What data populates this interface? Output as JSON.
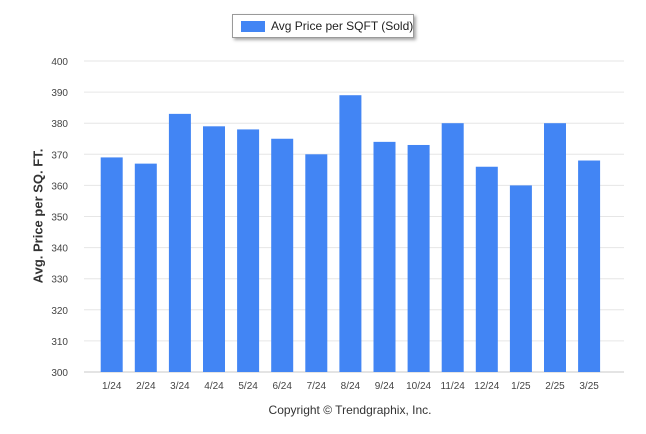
{
  "chart_data": {
    "type": "bar",
    "categories": [
      "1/24",
      "2/24",
      "3/24",
      "4/24",
      "5/24",
      "6/24",
      "7/24",
      "8/24",
      "9/24",
      "10/24",
      "11/24",
      "12/24",
      "1/25",
      "2/25",
      "3/25"
    ],
    "series": [
      {
        "name": "Avg Price per SQFT (Sold)",
        "values": [
          369,
          367,
          383,
          379,
          378,
          375,
          370,
          389,
          374,
          373,
          380,
          366,
          360,
          380,
          368
        ]
      }
    ],
    "ylabel": "Avg. Price per SQ. FT.",
    "xlabel": "",
    "ylim": [
      300,
      400
    ],
    "yticks": [
      300,
      310,
      320,
      330,
      340,
      350,
      360,
      370,
      380,
      390,
      400
    ],
    "grid": true,
    "legend_position": "top-center",
    "bar_color": "#4285f4",
    "grid_color": "#e6e6e6"
  },
  "footer": {
    "copyright": "Copyright © Trendgraphix, Inc."
  }
}
